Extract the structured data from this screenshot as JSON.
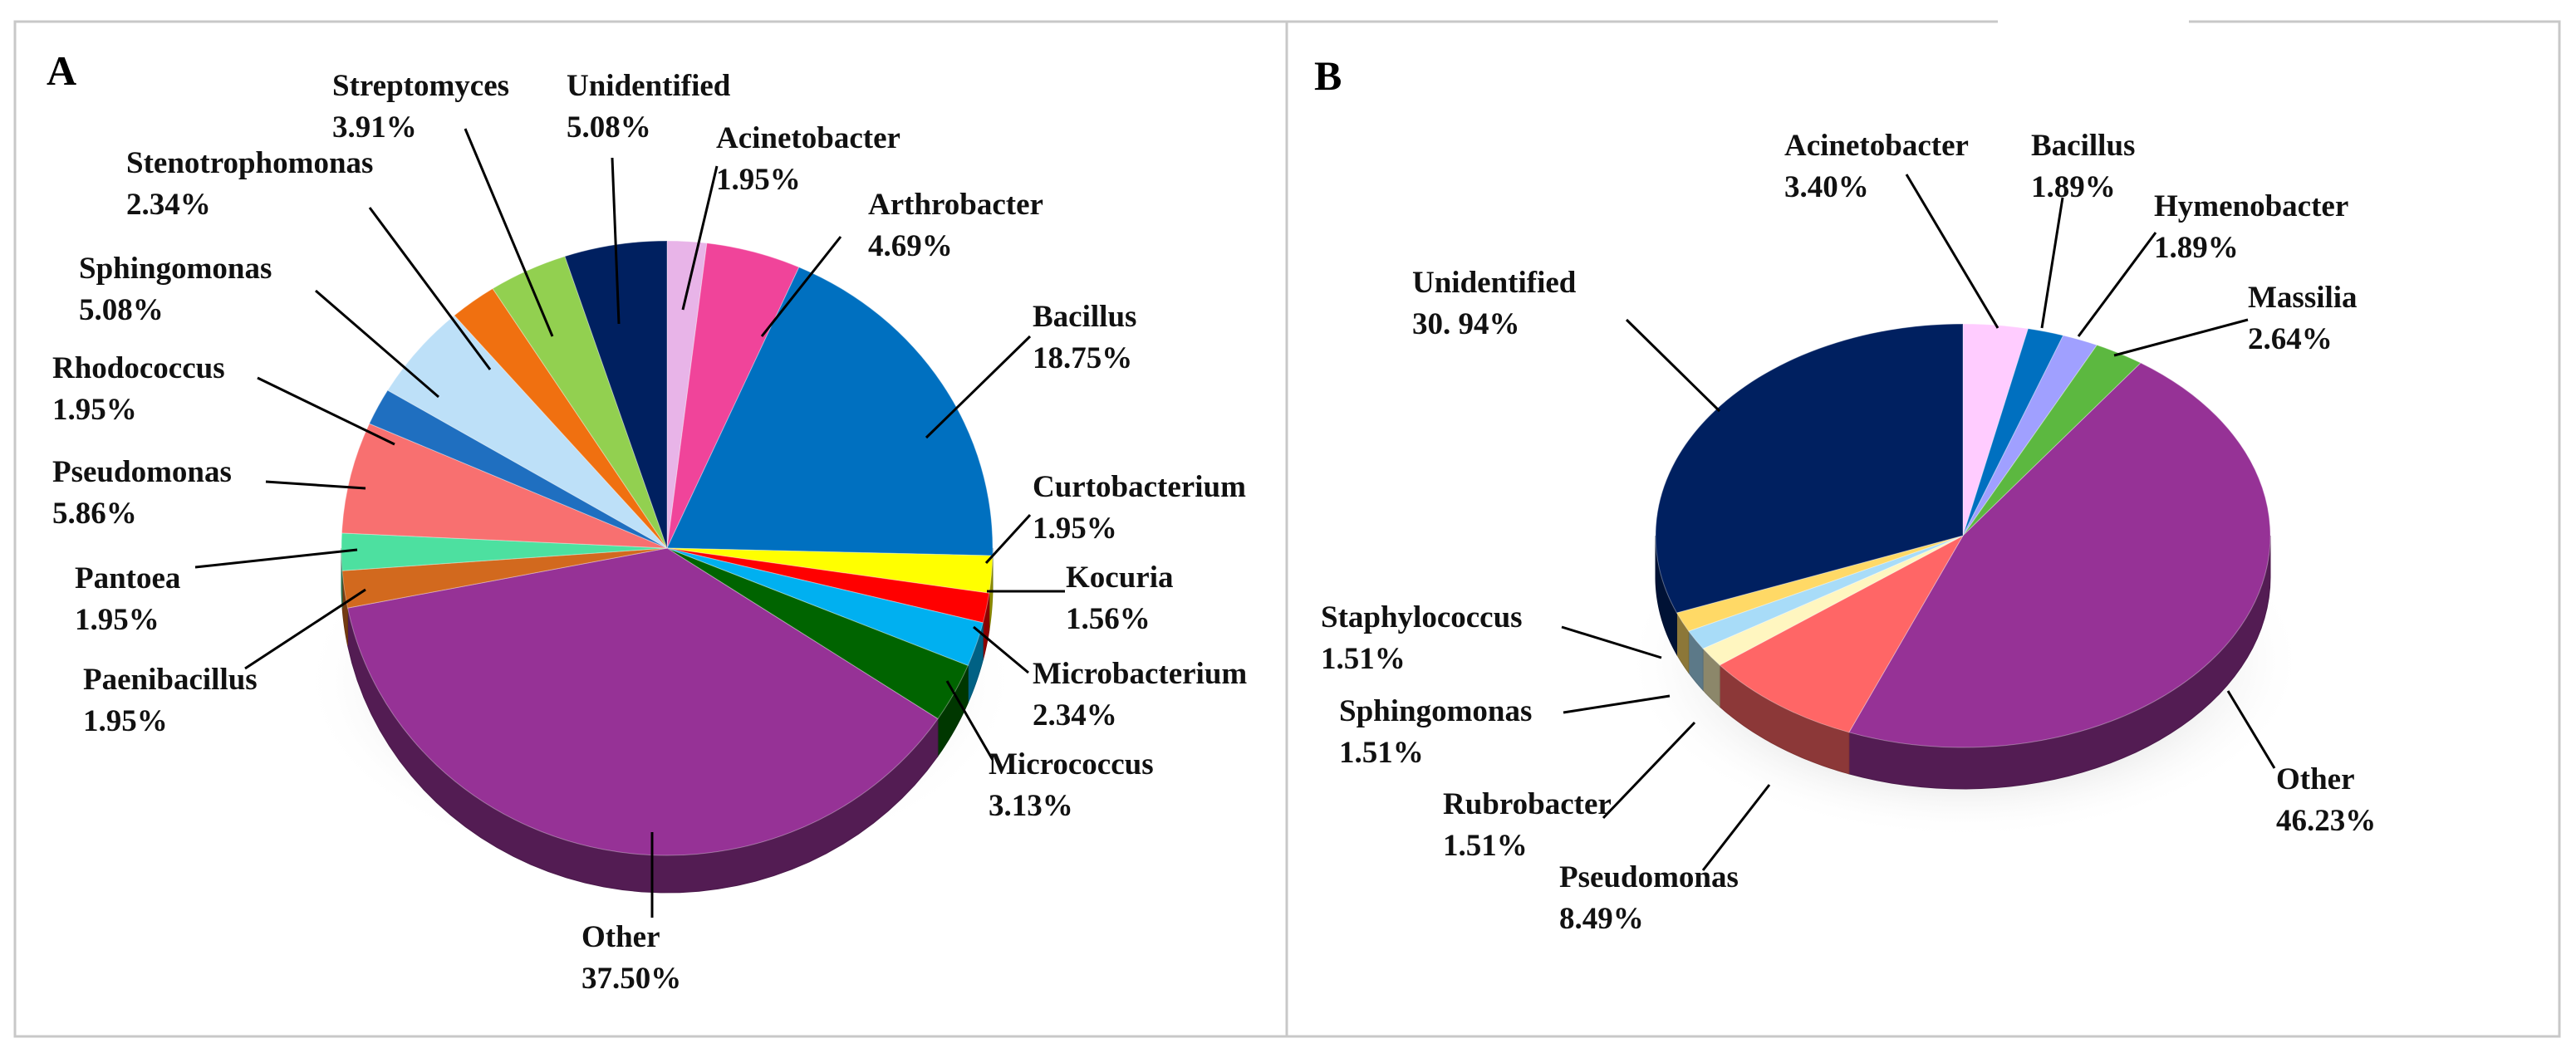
{
  "chart_data": [
    {
      "type": "pie",
      "panel_label": "A",
      "title": "",
      "slices": [
        {
          "name": "Acinetobacter",
          "value": 1.95,
          "value_label": "1.95%",
          "color": "#e8b4e8"
        },
        {
          "name": "Arthrobacter",
          "value": 4.69,
          "value_label": "4.69%",
          "color": "#f0449a"
        },
        {
          "name": "Bacillus",
          "value": 18.75,
          "value_label": "18.75%",
          "color": "#0070c0"
        },
        {
          "name": "Curtobacterium",
          "value": 1.95,
          "value_label": "1.95%",
          "color": "#ffff00"
        },
        {
          "name": "Kocuria",
          "value": 1.56,
          "value_label": "1.56%",
          "color": "#ff0000"
        },
        {
          "name": "Microbacterium",
          "value": 2.34,
          "value_label": "2.34%",
          "color": "#00b0f0"
        },
        {
          "name": "Micrococcus",
          "value": 3.13,
          "value_label": "3.13%",
          "color": "#006400"
        },
        {
          "name": "Other",
          "value": 37.5,
          "value_label": "37.50%",
          "color": "#963296"
        },
        {
          "name": "Paenibacillus",
          "value": 1.95,
          "value_label": "1.95%",
          "color": "#d2691e"
        },
        {
          "name": "Pantoea",
          "value": 1.95,
          "value_label": "1.95%",
          "color": "#4de0a0"
        },
        {
          "name": "Pseudomonas",
          "value": 5.86,
          "value_label": "5.86%",
          "color": "#f87070"
        },
        {
          "name": "Rhodococcus",
          "value": 1.95,
          "value_label": "1.95%",
          "color": "#1f6fc0"
        },
        {
          "name": "Sphingomonas",
          "value": 5.08,
          "value_label": "5.08%",
          "color": "#bde0f8"
        },
        {
          "name": "Stenotrophomonas",
          "value": 2.34,
          "value_label": "2.34%",
          "color": "#f07010"
        },
        {
          "name": "Streptomyces",
          "value": 3.91,
          "value_label": "3.91%",
          "color": "#92d050"
        },
        {
          "name": "Unidentified",
          "value": 5.08,
          "value_label": "5.08%",
          "color": "#002060"
        }
      ]
    },
    {
      "type": "pie",
      "panel_label": "B",
      "title": "",
      "slices": [
        {
          "name": "Acinetobacter",
          "value": 3.4,
          "value_label": "3.40%",
          "color": "#ffccff"
        },
        {
          "name": "Bacillus",
          "value": 1.89,
          "value_label": "1.89%",
          "color": "#0070c0"
        },
        {
          "name": "Hymenobacter",
          "value": 1.89,
          "value_label": "1.89%",
          "color": "#a0a0ff"
        },
        {
          "name": "Massilia",
          "value": 2.64,
          "value_label": "2.64%",
          "color": "#5cb840"
        },
        {
          "name": "Other",
          "value": 46.23,
          "value_label": "46.23%",
          "color": "#963296"
        },
        {
          "name": "Pseudomonas",
          "value": 8.49,
          "value_label": "8.49%",
          "color": "#ff6666"
        },
        {
          "name": "Rubrobacter",
          "value": 1.51,
          "value_label": "1.51%",
          "color": "#fff6c0"
        },
        {
          "name": "Sphingomonas",
          "value": 1.51,
          "value_label": "1.51%",
          "color": "#a8dcf8"
        },
        {
          "name": "Staphylococcus",
          "value": 1.51,
          "value_label": "1.51%",
          "color": "#ffd966"
        },
        {
          "name": "Unidentified",
          "value": 30.94,
          "value_label": "30. 94%",
          "color": "#002060"
        }
      ]
    }
  ]
}
